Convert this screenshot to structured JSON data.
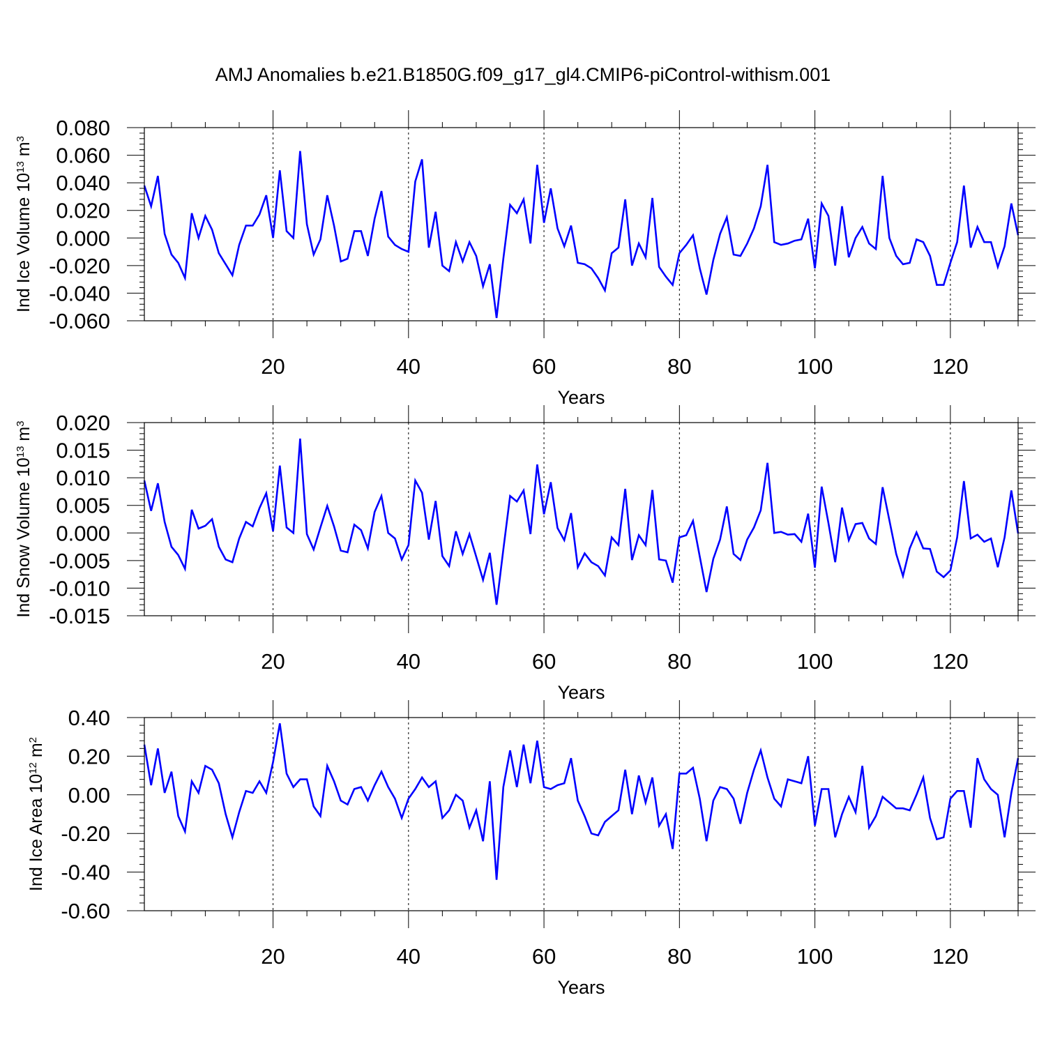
{
  "title": "AMJ Anomalies b.e21.B1850G.f09_g17_gl4.CMIP6-piControl-withism.001",
  "line_color": "#0000ff",
  "chart_data": [
    {
      "type": "line",
      "ylabel": "Ind Ice Volume 10",
      "ylabel_exp": "13",
      "ylabel_unit": " m",
      "ylabel_unit_exp": "3",
      "xlabel": "Years",
      "xlim": [
        1,
        130
      ],
      "ylim": [
        -0.06,
        0.08
      ],
      "ytick_values": [
        -0.06,
        -0.04,
        -0.02,
        0.0,
        0.02,
        0.04,
        0.06,
        0.08
      ],
      "ytick_labels": [
        "-0.060",
        "-0.040",
        "-0.020",
        "0.000",
        "0.020",
        "0.040",
        "0.060",
        "0.080"
      ],
      "xtick_values": [
        20,
        40,
        60,
        80,
        100,
        120
      ],
      "xtick_labels": [
        "20",
        "40",
        "60",
        "80",
        "100",
        "120"
      ],
      "vgrid": "dashed at major x ticks",
      "x_start": 1,
      "values": [
        0.038,
        0.023,
        0.045,
        0.003,
        -0.012,
        -0.018,
        -0.029,
        0.018,
        0.0,
        0.016,
        0.006,
        -0.011,
        -0.019,
        -0.027,
        -0.005,
        0.009,
        0.009,
        0.017,
        0.031,
        0.0,
        0.049,
        0.005,
        0.0,
        0.063,
        0.01,
        -0.012,
        -0.001,
        0.031,
        0.009,
        -0.017,
        -0.015,
        0.005,
        0.005,
        -0.013,
        0.014,
        0.034,
        0.001,
        -0.005,
        -0.008,
        -0.01,
        0.041,
        0.057,
        -0.007,
        0.019,
        -0.02,
        -0.024,
        -0.003,
        -0.017,
        -0.003,
        -0.013,
        -0.035,
        -0.019,
        -0.058,
        -0.015,
        0.024,
        0.018,
        0.028,
        -0.004,
        0.053,
        0.011,
        0.036,
        0.007,
        -0.006,
        0.009,
        -0.018,
        -0.019,
        -0.022,
        -0.029,
        -0.038,
        -0.011,
        -0.007,
        0.028,
        -0.02,
        -0.004,
        -0.014,
        0.029,
        -0.021,
        -0.028,
        -0.034,
        -0.011,
        -0.005,
        0.002,
        -0.022,
        -0.041,
        -0.016,
        0.003,
        0.015,
        -0.012,
        -0.013,
        -0.004,
        0.007,
        0.023,
        0.053,
        -0.003,
        -0.005,
        -0.004,
        -0.002,
        -0.001,
        0.014,
        -0.022,
        0.025,
        0.016,
        -0.02,
        0.023,
        -0.014,
        0.0,
        0.008,
        -0.004,
        -0.008,
        0.045,
        0.0,
        -0.013,
        -0.019,
        -0.018,
        -0.001,
        -0.003,
        -0.013,
        -0.034,
        -0.034,
        -0.018,
        -0.003,
        0.038,
        -0.007,
        0.008,
        -0.003,
        -0.003,
        -0.021,
        -0.006,
        0.025,
        0.002
      ]
    },
    {
      "type": "line",
      "ylabel": "Ind Snow Volume 10",
      "ylabel_exp": "13",
      "ylabel_unit": " m",
      "ylabel_unit_exp": "3",
      "xlabel": "Years",
      "xlim": [
        1,
        130
      ],
      "ylim": [
        -0.015,
        0.02
      ],
      "ytick_values": [
        -0.015,
        -0.01,
        -0.005,
        0.0,
        0.005,
        0.01,
        0.015,
        0.02
      ],
      "ytick_labels": [
        "-0.015",
        "-0.010",
        "-0.005",
        "0.000",
        "0.005",
        "0.010",
        "0.015",
        "0.020"
      ],
      "xtick_values": [
        20,
        40,
        60,
        80,
        100,
        120
      ],
      "xtick_labels": [
        "20",
        "40",
        "60",
        "80",
        "100",
        "120"
      ],
      "vgrid": "dashed at major x ticks",
      "x_start": 1,
      "values": [
        0.0095,
        0.004,
        0.009,
        0.002,
        -0.0025,
        -0.004,
        -0.0065,
        0.0042,
        0.0008,
        0.0013,
        0.0025,
        -0.0025,
        -0.0048,
        -0.0053,
        -0.001,
        0.002,
        0.0012,
        0.0045,
        0.0072,
        0.0003,
        0.0122,
        0.001,
        0.0,
        0.0171,
        -0.0002,
        -0.003,
        0.001,
        0.0049,
        0.0012,
        -0.0032,
        -0.0035,
        0.0015,
        0.0005,
        -0.0028,
        0.0038,
        0.0067,
        0.0,
        -0.001,
        -0.0048,
        -0.0022,
        0.0095,
        0.0073,
        -0.0012,
        0.0058,
        -0.0042,
        -0.006,
        0.0003,
        -0.0038,
        -0.0002,
        -0.0043,
        -0.0085,
        -0.0036,
        -0.013,
        -0.003,
        0.0067,
        0.0057,
        0.0077,
        -0.0002,
        0.0124,
        0.0034,
        0.0092,
        0.0009,
        -0.0013,
        0.0036,
        -0.0062,
        -0.0037,
        -0.0053,
        -0.006,
        -0.0077,
        -0.0008,
        -0.0022,
        0.008,
        -0.0049,
        -0.0004,
        -0.0022,
        0.0078,
        -0.0048,
        -0.005,
        -0.009,
        -0.0008,
        -0.0004,
        0.0022,
        -0.0043,
        -0.0107,
        -0.0047,
        -0.0012,
        0.0048,
        -0.0038,
        -0.0049,
        -0.0012,
        0.001,
        0.0041,
        0.0127,
        0.0,
        0.0002,
        -0.0003,
        -0.0002,
        -0.0016,
        0.0035,
        -0.0063,
        0.0084,
        0.0018,
        -0.0053,
        0.0046,
        -0.0013,
        0.0016,
        0.0018,
        -0.001,
        -0.002,
        0.0083,
        0.0023,
        -0.0038,
        -0.0078,
        -0.0028,
        0.0001,
        -0.0028,
        -0.0029,
        -0.007,
        -0.008,
        -0.0068,
        -0.0008,
        0.0094,
        -0.001,
        -0.0003,
        -0.0016,
        -0.001,
        -0.0062,
        -0.0008,
        0.0077,
        -0.0001
      ]
    },
    {
      "type": "line",
      "ylabel": "Ind Ice Area 10",
      "ylabel_exp": "12",
      "ylabel_unit": " m",
      "ylabel_unit_exp": "2",
      "xlabel": "Years",
      "xlim": [
        1,
        130
      ],
      "ylim": [
        -0.6,
        0.4
      ],
      "ytick_values": [
        -0.6,
        -0.4,
        -0.2,
        0.0,
        0.2,
        0.4
      ],
      "ytick_labels": [
        "-0.60",
        "-0.40",
        "-0.20",
        "0.00",
        "0.20",
        "0.40"
      ],
      "xtick_values": [
        20,
        40,
        60,
        80,
        100,
        120
      ],
      "xtick_labels": [
        "20",
        "40",
        "60",
        "80",
        "100",
        "120"
      ],
      "vgrid": "dashed at major x ticks",
      "x_start": 1,
      "values": [
        0.26,
        0.05,
        0.24,
        0.01,
        0.12,
        -0.11,
        -0.19,
        0.07,
        0.01,
        0.15,
        0.13,
        0.06,
        -0.1,
        -0.22,
        -0.09,
        0.02,
        0.01,
        0.07,
        0.01,
        0.17,
        0.37,
        0.11,
        0.04,
        0.08,
        0.08,
        -0.06,
        -0.11,
        0.15,
        0.07,
        -0.03,
        -0.05,
        0.03,
        0.04,
        -0.03,
        0.05,
        0.12,
        0.04,
        -0.02,
        -0.12,
        -0.02,
        0.03,
        0.09,
        0.04,
        0.07,
        -0.12,
        -0.08,
        0.0,
        -0.03,
        -0.17,
        -0.08,
        -0.24,
        0.07,
        -0.44,
        0.04,
        0.23,
        0.04,
        0.26,
        0.06,
        0.28,
        0.04,
        0.03,
        0.05,
        0.06,
        0.19,
        -0.03,
        -0.11,
        -0.2,
        -0.21,
        -0.14,
        -0.11,
        -0.08,
        0.13,
        -0.1,
        0.1,
        -0.04,
        0.09,
        -0.16,
        -0.1,
        -0.28,
        0.11,
        0.11,
        0.14,
        -0.02,
        -0.24,
        -0.03,
        0.04,
        0.03,
        -0.02,
        -0.15,
        0.01,
        0.13,
        0.23,
        0.09,
        -0.02,
        -0.06,
        0.08,
        0.07,
        0.06,
        0.2,
        -0.16,
        0.03,
        0.03,
        -0.22,
        -0.1,
        -0.01,
        -0.09,
        0.15,
        -0.17,
        -0.11,
        -0.01,
        -0.04,
        -0.07,
        -0.07,
        -0.08,
        0.0,
        0.09,
        -0.12,
        -0.23,
        -0.22,
        -0.02,
        0.02,
        0.02,
        -0.17,
        0.19,
        0.08,
        0.03,
        0.0,
        -0.22,
        0.01,
        0.19
      ]
    }
  ]
}
